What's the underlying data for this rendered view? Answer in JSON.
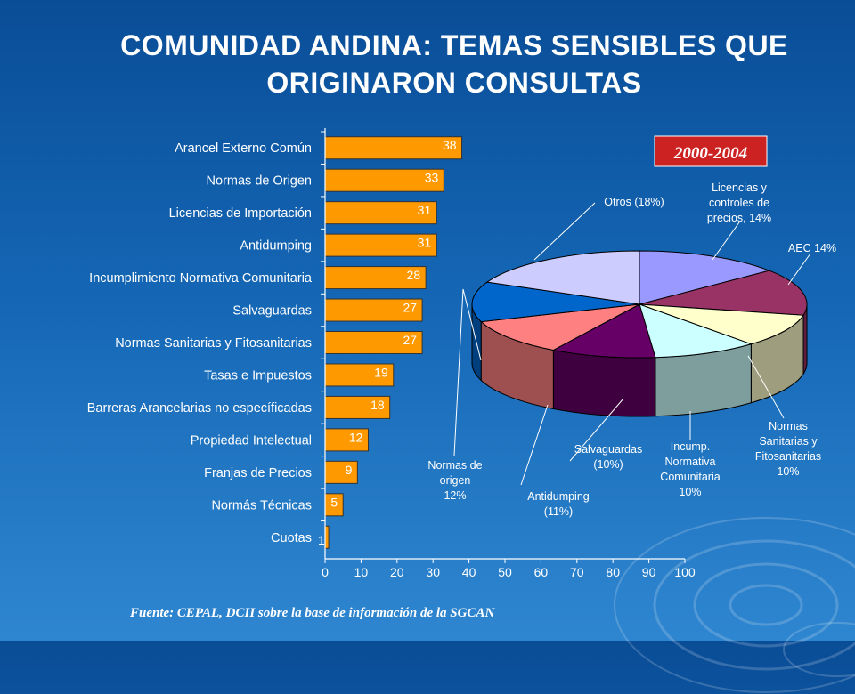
{
  "title_line1": "COMUNIDAD ANDINA: TEMAS SENSIBLES QUE",
  "title_line2": "ORIGINARON CONSULTAS",
  "source": "Fuente: CEPAL, DCII sobre la base de información de la SGCAN",
  "colors": {
    "bar": "#ff9900",
    "text": "#ffffff",
    "badge": "#cc2222"
  },
  "chart_data": [
    {
      "type": "bar",
      "orientation": "horizontal",
      "categories": [
        "Arancel Externo Común",
        "Normas de Origen",
        "Licencias de Importación",
        "Antidumping",
        "Incumplimiento Normativa Comunitaria",
        "Salvaguardas",
        "Normas Sanitarias y Fitosanitarias",
        "Tasas e Impuestos",
        "Barreras Arancelarias no específicadas",
        "Propiedad Intelectual",
        "Franjas de Precios",
        "Normás Técnicas",
        "Cuotas"
      ],
      "values": [
        38,
        33,
        31,
        31,
        28,
        27,
        27,
        19,
        18,
        12,
        9,
        5,
        1
      ],
      "xlim": [
        0,
        100
      ],
      "xticks": [
        0,
        10,
        20,
        30,
        40,
        50,
        60,
        70,
        80,
        90,
        100
      ],
      "grid": false
    },
    {
      "type": "pie",
      "style": "3d",
      "title": "2000-2004",
      "slices": [
        {
          "label": [
            "Licencias y",
            "controles de",
            "precios, 14%"
          ],
          "value": 14,
          "color": "#9999ff"
        },
        {
          "label": [
            "AEC 14%"
          ],
          "value": 14,
          "color": "#993366"
        },
        {
          "label": [
            "Normas",
            "Sanitarias y",
            "Fitosanitarias",
            "10%"
          ],
          "value": 10,
          "color": "#ffffcc"
        },
        {
          "label": [
            "Incump.",
            "Normativa",
            "Comunitaria",
            "10%"
          ],
          "value": 10,
          "color": "#ccffff"
        },
        {
          "label": [
            "Salvaguardas",
            "(10%)"
          ],
          "value": 10,
          "color": "#660066"
        },
        {
          "label": [
            "Antidumping",
            "(11%)"
          ],
          "value": 11,
          "color": "#ff8080"
        },
        {
          "label": [
            "Normas de",
            "origen",
            "12%"
          ],
          "value": 12,
          "color": "#0066cc"
        },
        {
          "label": [
            "Otros (18%)"
          ],
          "value": 18,
          "color": "#ccccff"
        }
      ]
    }
  ]
}
